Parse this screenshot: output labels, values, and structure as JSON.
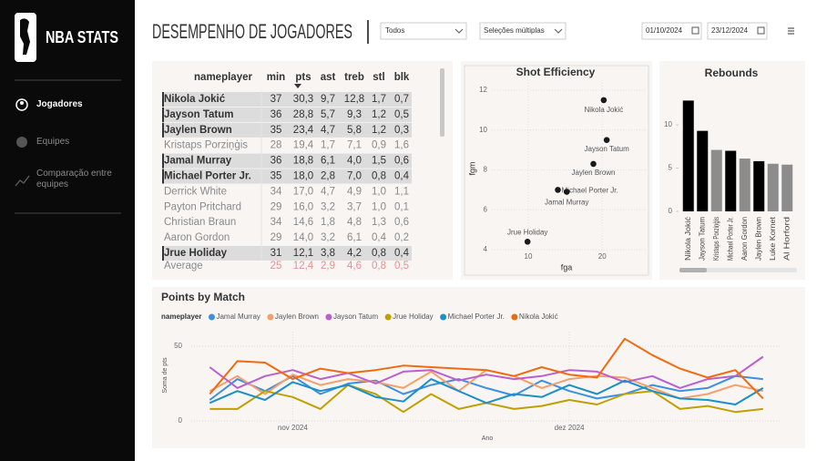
{
  "sidebar": {
    "brand": "NBA STATS",
    "nav": [
      "Jogadores",
      "Equipes",
      "Comparação entre equipes"
    ]
  },
  "header": {
    "title": "DESEMPENHO DE JOGADORES",
    "filters": [
      "Todos",
      "Seleções múltiplas"
    ],
    "dates": [
      "01/10/2024",
      "23/12/2024"
    ]
  },
  "table": {
    "columns": [
      "nameplayer",
      "min",
      "pts",
      "ast",
      "treb",
      "stl",
      "blk"
    ],
    "rows": [
      [
        "Nikola Jokić",
        "37",
        "30,3",
        "9,7",
        "12,8",
        "1,7",
        "0,7"
      ],
      [
        "Jayson Tatum",
        "36",
        "28,8",
        "5,7",
        "9,3",
        "1,2",
        "0,5"
      ],
      [
        "Jaylen Brown",
        "35",
        "23,4",
        "4,7",
        "5,8",
        "1,2",
        "0,3"
      ],
      [
        "Kristaps Porziņģis",
        "28",
        "19,4",
        "1,7",
        "7,1",
        "0,9",
        "1,6"
      ],
      [
        "Jamal Murray",
        "36",
        "18,8",
        "6,1",
        "4,0",
        "1,5",
        "0,6"
      ],
      [
        "Michael Porter Jr.",
        "35",
        "18,0",
        "2,8",
        "7,0",
        "0,8",
        "0,4"
      ],
      [
        "Derrick White",
        "34",
        "17,0",
        "4,7",
        "4,9",
        "1,0",
        "1,1"
      ],
      [
        "Payton Pritchard",
        "29",
        "16,0",
        "3,2",
        "3,7",
        "1,0",
        "0,1"
      ],
      [
        "Christian Braun",
        "34",
        "14,6",
        "1,8",
        "4,8",
        "1,3",
        "0,6"
      ],
      [
        "Aaron Gordon",
        "29",
        "14,0",
        "3,2",
        "6,1",
        "0,4",
        "0,2"
      ],
      [
        "Jrue Holiday",
        "31",
        "12,1",
        "3,8",
        "4,2",
        "0,8",
        "0,4"
      ]
    ],
    "highlighted": [
      0,
      1,
      2,
      4,
      5,
      10
    ],
    "average": [
      "Average",
      "25",
      "12,4",
      "2,9",
      "4,6",
      "0,8",
      "0,5"
    ]
  },
  "chart_data": [
    {
      "type": "scatter",
      "title": "Shot Efficiency",
      "x_label": "fga",
      "y_label": "fgm",
      "labels": [
        "Nikola Jokić",
        "Jayson Tatum",
        "Jaylen Brown",
        "Michael Porter Jr.",
        "Jamal Murray",
        "Jrue Holiday"
      ],
      "x": [
        20.2,
        20.6,
        18.8,
        14.0,
        15.2,
        9.9
      ],
      "values": [
        11.5,
        9.5,
        8.3,
        7.0,
        6.9,
        4.4
      ],
      "color": "#1a1a1a",
      "xlim": [
        2,
        26
      ],
      "ylim": [
        3.5,
        12.5
      ],
      "xticks": [
        10,
        20
      ],
      "yticks": [
        4,
        6,
        8,
        10,
        12
      ],
      "grid": true
    },
    {
      "type": "bar",
      "title": "Rebounds",
      "categories": [
        "Nikola Jokić",
        "Jayson Tatum",
        "Kristaps Porziņģis",
        "Michael Porter Jr.",
        "Aaron Gordon",
        "Jaylen Brown",
        "Luke Kornet",
        "Al Horford"
      ],
      "values": [
        12.8,
        9.3,
        7.1,
        7.0,
        6.1,
        5.8,
        5.5,
        5.4
      ],
      "colors": [
        "#000000",
        "#000000",
        "#8c8c8c",
        "#000000",
        "#8c8c8c",
        "#000000",
        "#8c8c8c",
        "#8c8c8c"
      ],
      "ylim": [
        0,
        13
      ],
      "yticks": [
        0,
        5,
        10
      ],
      "grid": false
    },
    {
      "type": "line",
      "title": "Points by Match",
      "legend_title": "nameplayer",
      "y_label": "Soma de pts",
      "x_label": "Ano",
      "x": [
        22,
        25,
        28,
        31,
        34,
        37,
        40,
        43,
        46,
        49,
        52,
        55,
        58,
        61,
        64,
        67,
        70,
        73,
        76,
        79,
        82
      ],
      "xlim": [
        20,
        84
      ],
      "xticks": [
        {
          "value": 31,
          "label": "nov 2024"
        },
        {
          "value": 61,
          "label": "dez 2024"
        }
      ],
      "ylim": [
        0,
        60
      ],
      "yticks": [
        0,
        50
      ],
      "grid": true,
      "series": [
        {
          "name": "Jamal Murray",
          "color": "#3d8fe0",
          "values": [
            14,
            28,
            20,
            30,
            18,
            25,
            27,
            18,
            24,
            28,
            22,
            17,
            27,
            20,
            15,
            18,
            24,
            20,
            22,
            30,
            28
          ]
        },
        {
          "name": "Jaylen Brown",
          "color": "#f5a06a",
          "values": [
            20,
            30,
            18,
            31,
            24,
            28,
            26,
            22,
            33,
            20,
            34,
            30,
            22,
            28,
            30,
            29,
            22,
            15,
            18,
            24,
            20
          ]
        },
        {
          "name": "Jayson Tatum",
          "color": "#b95fd0",
          "values": [
            36,
            22,
            30,
            34,
            28,
            32,
            25,
            33,
            34,
            27,
            31,
            28,
            30,
            34,
            33,
            26,
            30,
            22,
            28,
            30,
            43
          ]
        },
        {
          "name": "Jrue Holiday",
          "color": "#c0a000",
          "values": [
            8,
            8,
            20,
            16,
            8,
            24,
            18,
            6,
            18,
            8,
            12,
            8,
            10,
            14,
            11,
            18,
            20,
            8,
            10,
            6,
            8
          ]
        },
        {
          "name": "Michael Porter Jr.",
          "color": "#1a8fc8",
          "values": [
            12,
            20,
            14,
            26,
            20,
            24,
            16,
            13,
            28,
            20,
            12,
            18,
            16,
            24,
            18,
            27,
            20,
            15,
            14,
            11,
            22
          ]
        },
        {
          "name": "Nikola Jokić",
          "color": "#f06a10",
          "values": [
            18,
            40,
            39,
            28,
            35,
            32,
            34,
            37,
            36,
            35,
            34,
            30,
            36,
            31,
            29,
            55,
            44,
            35,
            29,
            34,
            15
          ]
        }
      ]
    }
  ]
}
